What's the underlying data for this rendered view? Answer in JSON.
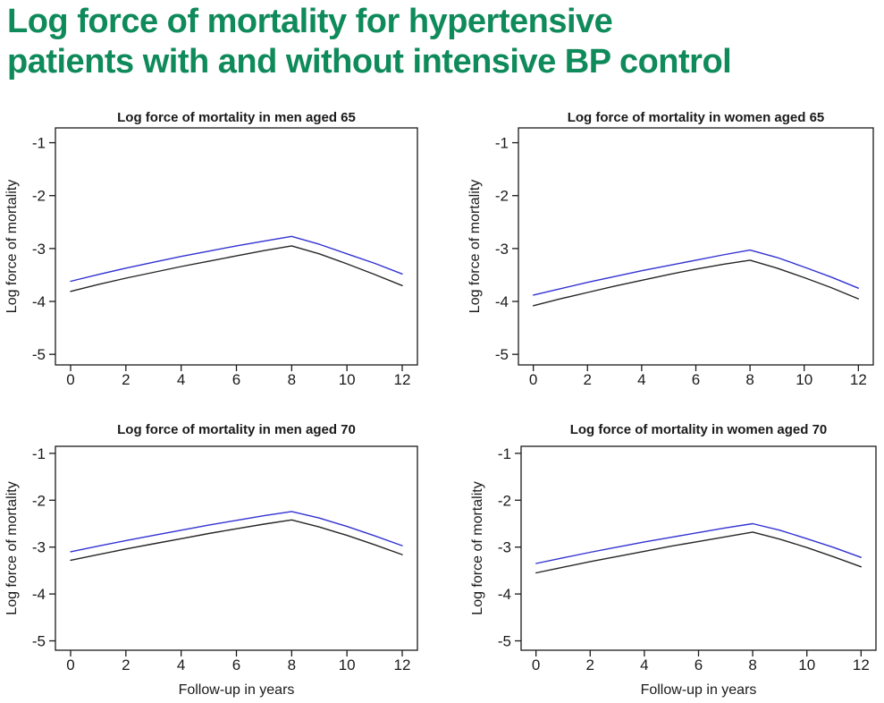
{
  "page": {
    "title_lines": [
      "Log force of mortality for hypertensive",
      "patients with and without intensive BP control"
    ],
    "title_color": "#0f8a5a",
    "background": "#ffffff",
    "axis_color": "#1a1a1a",
    "blue_line_color": "#3232d2",
    "black_line_color": "#262626"
  },
  "chart_data": [
    {
      "type": "line",
      "title": "Log force of mortality in men aged 65",
      "xlabel": "",
      "ylabel": "Log force of mortality",
      "x": [
        0,
        1,
        2,
        3,
        4,
        5,
        6,
        7,
        8,
        9,
        10,
        11,
        12
      ],
      "xticks": [
        0,
        2,
        4,
        6,
        8,
        10,
        12
      ],
      "yticks": [
        -1,
        -2,
        -3,
        -4,
        -5
      ],
      "xlim": [
        -0.55,
        12.55
      ],
      "ylim": [
        -5.2,
        -0.72
      ],
      "grid": false,
      "legend": "none",
      "series": [
        {
          "name": "blue-line",
          "color": "#3232d2",
          "values": [
            -3.62,
            -3.49,
            -3.37,
            -3.26,
            -3.15,
            -3.05,
            -2.95,
            -2.86,
            -2.77,
            -2.92,
            -3.1,
            -3.28,
            -3.48
          ]
        },
        {
          "name": "black-line",
          "color": "#262626",
          "values": [
            -3.81,
            -3.68,
            -3.56,
            -3.45,
            -3.34,
            -3.24,
            -3.14,
            -3.04,
            -2.95,
            -3.1,
            -3.29,
            -3.49,
            -3.7
          ]
        }
      ]
    },
    {
      "type": "line",
      "title": "Log force of mortality in women aged 65",
      "xlabel": "",
      "ylabel": "Log force of mortality",
      "x": [
        0,
        1,
        2,
        3,
        4,
        5,
        6,
        7,
        8,
        9,
        10,
        11,
        12
      ],
      "xticks": [
        0,
        2,
        4,
        6,
        8,
        10,
        12
      ],
      "yticks": [
        -1,
        -2,
        -3,
        -4,
        -5
      ],
      "xlim": [
        -0.55,
        12.55
      ],
      "ylim": [
        -5.2,
        -0.72
      ],
      "grid": false,
      "legend": "none",
      "series": [
        {
          "name": "blue-line",
          "color": "#3232d2",
          "values": [
            -3.88,
            -3.76,
            -3.64,
            -3.53,
            -3.42,
            -3.32,
            -3.22,
            -3.12,
            -3.03,
            -3.17,
            -3.35,
            -3.54,
            -3.75
          ]
        },
        {
          "name": "black-line",
          "color": "#262626",
          "values": [
            -4.08,
            -3.95,
            -3.83,
            -3.71,
            -3.6,
            -3.49,
            -3.39,
            -3.3,
            -3.22,
            -3.37,
            -3.55,
            -3.74,
            -3.95
          ]
        }
      ]
    },
    {
      "type": "line",
      "title": "Log force of mortality in men aged 70",
      "xlabel": "Follow-up in years",
      "ylabel": "Log force of mortality",
      "x": [
        0,
        1,
        2,
        3,
        4,
        5,
        6,
        7,
        8,
        9,
        10,
        11,
        12
      ],
      "xticks": [
        0,
        2,
        4,
        6,
        8,
        10,
        12
      ],
      "yticks": [
        -1,
        -2,
        -3,
        -4,
        -5
      ],
      "xlim": [
        -0.55,
        12.55
      ],
      "ylim": [
        -5.2,
        -0.85
      ],
      "grid": false,
      "legend": "none",
      "series": [
        {
          "name": "blue-line",
          "color": "#3232d2",
          "values": [
            -3.1,
            -2.98,
            -2.86,
            -2.75,
            -2.64,
            -2.53,
            -2.43,
            -2.33,
            -2.24,
            -2.38,
            -2.56,
            -2.76,
            -2.97
          ]
        },
        {
          "name": "black-line",
          "color": "#262626",
          "values": [
            -3.28,
            -3.16,
            -3.04,
            -2.93,
            -2.82,
            -2.71,
            -2.61,
            -2.51,
            -2.42,
            -2.57,
            -2.75,
            -2.95,
            -3.16
          ]
        }
      ]
    },
    {
      "type": "line",
      "title": "Log force of mortality in women aged 70",
      "xlabel": "Follow-up in years",
      "ylabel": "Log force of mortality",
      "x": [
        0,
        1,
        2,
        3,
        4,
        5,
        6,
        7,
        8,
        9,
        10,
        11,
        12
      ],
      "xticks": [
        0,
        2,
        4,
        6,
        8,
        10,
        12
      ],
      "yticks": [
        -1,
        -2,
        -3,
        -4,
        -5
      ],
      "xlim": [
        -0.55,
        12.55
      ],
      "ylim": [
        -5.2,
        -0.85
      ],
      "grid": false,
      "legend": "none",
      "series": [
        {
          "name": "blue-line",
          "color": "#3232d2",
          "values": [
            -3.35,
            -3.23,
            -3.11,
            -3.0,
            -2.89,
            -2.79,
            -2.69,
            -2.59,
            -2.5,
            -2.64,
            -2.82,
            -3.01,
            -3.22
          ]
        },
        {
          "name": "black-line",
          "color": "#262626",
          "values": [
            -3.55,
            -3.43,
            -3.31,
            -3.2,
            -3.09,
            -2.98,
            -2.88,
            -2.78,
            -2.68,
            -2.83,
            -3.01,
            -3.21,
            -3.42
          ]
        }
      ]
    }
  ]
}
